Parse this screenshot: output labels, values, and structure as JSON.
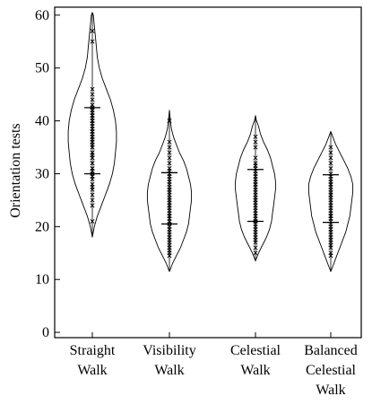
{
  "chart_data": {
    "type": "violin",
    "ylabel": "Orientation tests",
    "xlabel": "",
    "ylim": [
      -1,
      61.5
    ],
    "yticks": [
      0,
      10,
      20,
      30,
      40,
      50,
      60
    ],
    "grid": false,
    "categories": [
      {
        "lines": [
          "Straight",
          "Walk"
        ]
      },
      {
        "lines": [
          "Visibility",
          "Walk"
        ]
      },
      {
        "lines": [
          "Celestial",
          "Walk"
        ]
      },
      {
        "lines": [
          "Balanced",
          "Celestial",
          "Walk"
        ]
      }
    ],
    "groups": [
      {
        "name": "Straight Walk",
        "min": 18,
        "max": 60.5,
        "q1": 30,
        "q3": 42.5,
        "profile": [
          [
            18,
            0
          ],
          [
            20,
            2
          ],
          [
            22,
            5
          ],
          [
            24,
            9
          ],
          [
            26,
            13
          ],
          [
            28,
            17
          ],
          [
            30,
            20
          ],
          [
            32,
            22
          ],
          [
            34,
            23
          ],
          [
            36,
            24
          ],
          [
            38,
            24
          ],
          [
            40,
            23
          ],
          [
            42,
            21
          ],
          [
            44,
            18
          ],
          [
            46,
            14
          ],
          [
            48,
            10
          ],
          [
            50,
            7
          ],
          [
            52,
            5
          ],
          [
            54,
            4
          ],
          [
            56,
            3
          ],
          [
            58,
            2
          ],
          [
            60,
            1
          ],
          [
            60.5,
            0
          ]
        ],
        "points": [
          21,
          24,
          25,
          26,
          27,
          27.5,
          28,
          29,
          29.5,
          30,
          30.5,
          31,
          31,
          32,
          32,
          33,
          33,
          33.5,
          34,
          34,
          35,
          35,
          35.5,
          36,
          36,
          36.5,
          37,
          37,
          37.5,
          38,
          38,
          38.5,
          39,
          39.5,
          40,
          40,
          40.5,
          41,
          41,
          41.5,
          42,
          42,
          42.5,
          43,
          44,
          45,
          46,
          55,
          57
        ]
      },
      {
        "name": "Visibility Walk",
        "min": 11.5,
        "max": 42,
        "q1": 20.5,
        "q3": 30.2,
        "profile": [
          [
            11.5,
            0
          ],
          [
            13,
            3
          ],
          [
            14.5,
            7
          ],
          [
            16,
            11
          ],
          [
            17.5,
            14
          ],
          [
            19,
            17
          ],
          [
            20.5,
            19
          ],
          [
            22,
            20
          ],
          [
            23.5,
            21
          ],
          [
            25,
            22
          ],
          [
            26.5,
            22
          ],
          [
            28,
            21
          ],
          [
            29.5,
            19
          ],
          [
            31,
            17
          ],
          [
            32.5,
            14
          ],
          [
            34,
            10
          ],
          [
            35.5,
            7
          ],
          [
            37,
            4
          ],
          [
            38.5,
            2
          ],
          [
            40,
            1
          ],
          [
            42,
            0
          ]
        ],
        "points": [
          14.5,
          15,
          15.5,
          16,
          16.5,
          17,
          17.5,
          18,
          18.5,
          19,
          19.5,
          20,
          20.5,
          21,
          21.5,
          22,
          22,
          22.5,
          23,
          23.5,
          24,
          24,
          24.5,
          25,
          25,
          25.5,
          26,
          26.5,
          27,
          27,
          27.5,
          28,
          28.5,
          29,
          29.5,
          30,
          30,
          30.5,
          31,
          32,
          33,
          34,
          35,
          36,
          40
        ]
      },
      {
        "name": "Celestial Walk",
        "min": 13.5,
        "max": 41,
        "q1": 21,
        "q3": 30.8,
        "profile": [
          [
            13.5,
            0
          ],
          [
            15,
            3
          ],
          [
            16.5,
            7
          ],
          [
            18,
            11
          ],
          [
            19.5,
            14
          ],
          [
            21,
            16
          ],
          [
            22.5,
            17
          ],
          [
            24,
            18
          ],
          [
            25.5,
            19
          ],
          [
            27,
            20
          ],
          [
            28.5,
            20
          ],
          [
            30,
            19
          ],
          [
            31.5,
            17
          ],
          [
            33,
            15
          ],
          [
            34.5,
            12
          ],
          [
            36,
            8
          ],
          [
            37.5,
            5
          ],
          [
            39,
            3
          ],
          [
            40,
            1
          ],
          [
            41,
            0
          ]
        ],
        "points": [
          15,
          16,
          17,
          17.5,
          18,
          18.5,
          19,
          19.5,
          20,
          20.5,
          21,
          21,
          21.5,
          22,
          22.5,
          23,
          23.5,
          24,
          24.5,
          25,
          25,
          25.5,
          26,
          26.5,
          27,
          27.5,
          28,
          28,
          28.5,
          29,
          29.5,
          30,
          30.5,
          31,
          31.5,
          32,
          33,
          35,
          36,
          37
        ]
      },
      {
        "name": "Balanced Celestial Walk",
        "min": 11.5,
        "max": 38,
        "q1": 20.8,
        "q3": 29.8,
        "profile": [
          [
            11.5,
            0
          ],
          [
            13,
            3
          ],
          [
            14.5,
            6
          ],
          [
            16,
            9
          ],
          [
            17.5,
            12
          ],
          [
            19,
            15
          ],
          [
            20.5,
            17
          ],
          [
            22,
            19
          ],
          [
            23.5,
            20
          ],
          [
            25,
            21
          ],
          [
            26.5,
            22
          ],
          [
            28,
            22
          ],
          [
            29.5,
            20
          ],
          [
            31,
            17
          ],
          [
            32.5,
            13
          ],
          [
            34,
            9
          ],
          [
            35.5,
            5
          ],
          [
            37,
            2
          ],
          [
            38,
            0
          ]
        ],
        "points": [
          14.5,
          15,
          16,
          16.5,
          17,
          17.5,
          18,
          18.5,
          19,
          19.5,
          20,
          20.5,
          21,
          21.5,
          22,
          22,
          22.5,
          23,
          23.5,
          24,
          24.5,
          25,
          25.5,
          26,
          26,
          26.5,
          27,
          27.5,
          28,
          28,
          28.5,
          29,
          29.5,
          30,
          31,
          32,
          33,
          34,
          35
        ]
      }
    ]
  }
}
